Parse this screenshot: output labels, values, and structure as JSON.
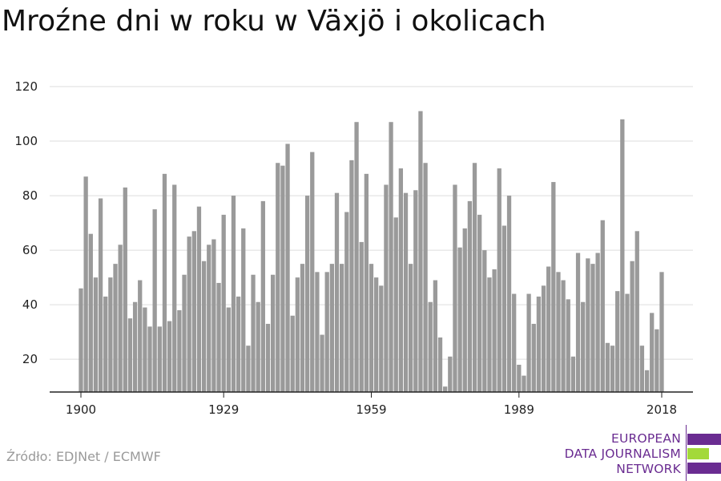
{
  "title": "Mroźne dni w roku w Växjö i okolicach",
  "source": "Źródło: EDJNet / ECMWF",
  "logo": {
    "lines": [
      "EUROPEAN",
      "DATA JOURNALISM",
      "NETWORK"
    ],
    "colors": {
      "purple": "#6a2c91",
      "green": "#a3d93a"
    }
  },
  "colors": {
    "bar": "#9a9a9a",
    "grid": "#dddddd",
    "axis": "#222222"
  },
  "chart_data": {
    "type": "bar",
    "title": "Mroźne dni w roku w Växjö i okolicach",
    "xlabel": "",
    "ylabel": "",
    "ylim": [
      8,
      120
    ],
    "yticks": [
      20,
      40,
      60,
      80,
      100,
      120
    ],
    "xticks": [
      1900,
      1929,
      1959,
      1989,
      2018
    ],
    "grid": true,
    "x": [
      1900,
      1901,
      1902,
      1903,
      1904,
      1905,
      1906,
      1907,
      1908,
      1909,
      1910,
      1911,
      1912,
      1913,
      1914,
      1915,
      1916,
      1917,
      1918,
      1919,
      1920,
      1921,
      1922,
      1923,
      1924,
      1925,
      1926,
      1927,
      1928,
      1929,
      1930,
      1931,
      1932,
      1933,
      1934,
      1935,
      1936,
      1937,
      1938,
      1939,
      1940,
      1941,
      1942,
      1943,
      1944,
      1945,
      1946,
      1947,
      1948,
      1949,
      1950,
      1951,
      1952,
      1953,
      1954,
      1955,
      1956,
      1957,
      1958,
      1959,
      1960,
      1961,
      1962,
      1963,
      1964,
      1965,
      1966,
      1967,
      1968,
      1969,
      1970,
      1971,
      1972,
      1973,
      1974,
      1975,
      1976,
      1977,
      1978,
      1979,
      1980,
      1981,
      1982,
      1983,
      1984,
      1985,
      1986,
      1987,
      1988,
      1989,
      1990,
      1991,
      1992,
      1993,
      1994,
      1995,
      1996,
      1997,
      1998,
      1999,
      2000,
      2001,
      2002,
      2003,
      2004,
      2005,
      2006,
      2007,
      2008,
      2009,
      2010,
      2011,
      2012,
      2013,
      2014,
      2015,
      2016,
      2017,
      2018
    ],
    "values": [
      46,
      87,
      66,
      50,
      79,
      43,
      50,
      55,
      62,
      83,
      35,
      41,
      49,
      39,
      32,
      75,
      32,
      88,
      34,
      84,
      38,
      51,
      65,
      67,
      76,
      56,
      62,
      64,
      48,
      73,
      39,
      80,
      43,
      68,
      25,
      51,
      41,
      78,
      33,
      51,
      92,
      91,
      99,
      36,
      50,
      55,
      80,
      96,
      52,
      29,
      52,
      55,
      81,
      55,
      74,
      93,
      107,
      63,
      88,
      55,
      50,
      47,
      84,
      107,
      72,
      90,
      81,
      55,
      82,
      111,
      92,
      41,
      49,
      28,
      10,
      21,
      84,
      61,
      68,
      78,
      92,
      73,
      60,
      50,
      53,
      90,
      69,
      80,
      44,
      18,
      14,
      44,
      33,
      43,
      47,
      54,
      85,
      52,
      49,
      42,
      21,
      59,
      41,
      57,
      55,
      59,
      71,
      26,
      25,
      45,
      108,
      44,
      56,
      67,
      25,
      16,
      37,
      31,
      52
    ]
  }
}
